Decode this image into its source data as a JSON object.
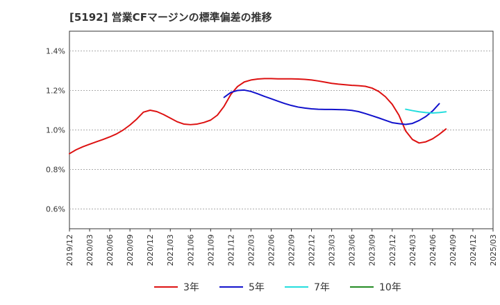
{
  "chart_data": {
    "type": "line",
    "title": "[5192]  営業CFマージンの標準偏差の推移",
    "xlabel": "",
    "ylabel": "",
    "x_ticks": [
      "2019/12",
      "2020/03",
      "2020/06",
      "2020/09",
      "2020/12",
      "2021/03",
      "2021/06",
      "2021/09",
      "2021/12",
      "2022/03",
      "2022/06",
      "2022/09",
      "2022/12",
      "2023/03",
      "2023/06",
      "2023/09",
      "2023/12",
      "2024/03",
      "2024/06",
      "2024/09",
      "2024/12",
      "2025/03"
    ],
    "y_ticks": [
      "0.6%",
      "0.8%",
      "1.0%",
      "1.2%",
      "1.4%"
    ],
    "y_tick_values": [
      0.6,
      0.8,
      1.0,
      1.2,
      1.4
    ],
    "ylim": [
      0.5,
      1.5
    ],
    "grid": true,
    "legend_position": "bottom",
    "series": [
      {
        "name": "3年",
        "color": "#dd1111",
        "points": [
          [
            "2019/12",
            0.88
          ],
          [
            "2020/01",
            0.9
          ],
          [
            "2020/02",
            0.915
          ],
          [
            "2020/03",
            0.928
          ],
          [
            "2020/04",
            0.94
          ],
          [
            "2020/05",
            0.952
          ],
          [
            "2020/06",
            0.965
          ],
          [
            "2020/07",
            0.98
          ],
          [
            "2020/08",
            1.0
          ],
          [
            "2020/09",
            1.025
          ],
          [
            "2020/10",
            1.055
          ],
          [
            "2020/11",
            1.09
          ],
          [
            "2020/12",
            1.1
          ],
          [
            "2021/01",
            1.093
          ],
          [
            "2021/02",
            1.078
          ],
          [
            "2021/03",
            1.06
          ],
          [
            "2021/04",
            1.042
          ],
          [
            "2021/05",
            1.03
          ],
          [
            "2021/06",
            1.027
          ],
          [
            "2021/07",
            1.03
          ],
          [
            "2021/08",
            1.038
          ],
          [
            "2021/09",
            1.05
          ],
          [
            "2021/10",
            1.075
          ],
          [
            "2021/11",
            1.12
          ],
          [
            "2021/12",
            1.18
          ],
          [
            "2022/01",
            1.22
          ],
          [
            "2022/02",
            1.243
          ],
          [
            "2022/03",
            1.253
          ],
          [
            "2022/04",
            1.258
          ],
          [
            "2022/05",
            1.26
          ],
          [
            "2022/06",
            1.26
          ],
          [
            "2022/07",
            1.259
          ],
          [
            "2022/08",
            1.259
          ],
          [
            "2022/09",
            1.259
          ],
          [
            "2022/10",
            1.258
          ],
          [
            "2022/11",
            1.256
          ],
          [
            "2022/12",
            1.253
          ],
          [
            "2023/01",
            1.248
          ],
          [
            "2023/02",
            1.242
          ],
          [
            "2023/03",
            1.236
          ],
          [
            "2023/04",
            1.232
          ],
          [
            "2023/05",
            1.229
          ],
          [
            "2023/06",
            1.226
          ],
          [
            "2023/07",
            1.224
          ],
          [
            "2023/08",
            1.221
          ],
          [
            "2023/09",
            1.212
          ],
          [
            "2023/10",
            1.195
          ],
          [
            "2023/11",
            1.168
          ],
          [
            "2023/12",
            1.13
          ],
          [
            "2024/01",
            1.075
          ],
          [
            "2024/02",
            0.995
          ],
          [
            "2024/03",
            0.952
          ],
          [
            "2024/04",
            0.934
          ],
          [
            "2024/05",
            0.94
          ],
          [
            "2024/06",
            0.955
          ],
          [
            "2024/07",
            0.978
          ],
          [
            "2024/08",
            1.005
          ]
        ]
      },
      {
        "name": "5年",
        "color": "#1111cc",
        "points": [
          [
            "2021/11",
            1.165
          ],
          [
            "2021/12",
            1.19
          ],
          [
            "2022/01",
            1.2
          ],
          [
            "2022/02",
            1.202
          ],
          [
            "2022/03",
            1.195
          ],
          [
            "2022/04",
            1.183
          ],
          [
            "2022/05",
            1.17
          ],
          [
            "2022/06",
            1.158
          ],
          [
            "2022/07",
            1.146
          ],
          [
            "2022/08",
            1.134
          ],
          [
            "2022/09",
            1.124
          ],
          [
            "2022/10",
            1.116
          ],
          [
            "2022/11",
            1.111
          ],
          [
            "2022/12",
            1.107
          ],
          [
            "2023/01",
            1.105
          ],
          [
            "2023/02",
            1.104
          ],
          [
            "2023/03",
            1.104
          ],
          [
            "2023/04",
            1.103
          ],
          [
            "2023/05",
            1.102
          ],
          [
            "2023/06",
            1.099
          ],
          [
            "2023/07",
            1.093
          ],
          [
            "2023/08",
            1.083
          ],
          [
            "2023/09",
            1.072
          ],
          [
            "2023/10",
            1.061
          ],
          [
            "2023/11",
            1.049
          ],
          [
            "2023/12",
            1.037
          ],
          [
            "2024/01",
            1.032
          ],
          [
            "2024/02",
            1.028
          ],
          [
            "2024/03",
            1.033
          ],
          [
            "2024/04",
            1.048
          ],
          [
            "2024/05",
            1.068
          ],
          [
            "2024/06",
            1.096
          ],
          [
            "2024/07",
            1.133
          ]
        ]
      },
      {
        "name": "7年",
        "color": "#22dddd",
        "points": [
          [
            "2024/02",
            1.105
          ],
          [
            "2024/03",
            1.098
          ],
          [
            "2024/04",
            1.092
          ],
          [
            "2024/05",
            1.088
          ],
          [
            "2024/06",
            1.086
          ],
          [
            "2024/07",
            1.088
          ],
          [
            "2024/08",
            1.092
          ]
        ]
      },
      {
        "name": "10年",
        "color": "#228b22",
        "points": []
      }
    ]
  }
}
